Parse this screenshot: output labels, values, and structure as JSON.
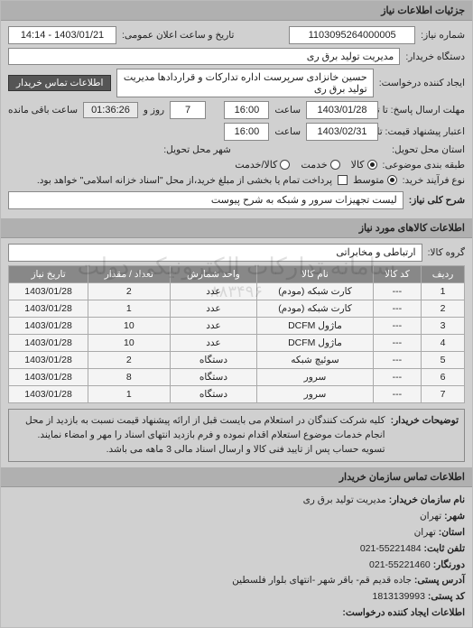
{
  "header": {
    "title": "جزئیات اطلاعات نیاز"
  },
  "top": {
    "req_no_label": "شماره نیاز:",
    "req_no": "1103095264000005",
    "pub_datetime_label": "تاریخ و ساعت اعلان عمومی:",
    "pub_datetime": "1403/01/21 - 14:14",
    "buyer_org_label": "دستگاه خریدار:",
    "buyer_org": "مدیریت تولید برق ری",
    "requester_label": "ایجاد کننده درخواست:",
    "requester": "حسین خانزادی سرپرست اداره تدارکات و قراردادها مدیریت تولید برق ری",
    "contact_btn": "اطلاعات تماس خریدار"
  },
  "deadlines": {
    "answer_to_label": "مهلت ارسال پاسخ: تا تاریخ:",
    "answer_date": "1403/01/28",
    "time_label": "ساعت",
    "answer_time": "16:00",
    "days_label": "روز و",
    "days": "7",
    "remain_label": "ساعت باقی مانده",
    "remain_time": "01:36:26",
    "price_to_label": "اعتبار پیشنهاد قیمت: تا تاریخ:",
    "price_date": "1403/02/31",
    "price_time": "16:00"
  },
  "location": {
    "province_label": "استان محل تحویل:",
    "city_label": "شهر محل تحویل:"
  },
  "classification": {
    "subject_label": "طبقه بندی موضوعی:",
    "opt_kala": "کالا",
    "opt_khadmat": "خدمت",
    "opt_kalakh": "کالا/خدمت",
    "process_label": "نوع فرآیند خرید:",
    "opt_mid": "متوسط",
    "process_note": "پرداخت تمام یا بخشی از مبلغ خرید،از محل \"اسناد خزانه اسلامی\" خواهد بود."
  },
  "need": {
    "title_label": "شرح کلی نیاز:",
    "title": "لیست تجهیزات سرور و شبکه به شرح پیوست"
  },
  "goods": {
    "section_title": "اطلاعات کالاهای مورد نیاز",
    "group_label": "گروه کالا:",
    "group": "ارتباطی و مخابراتی",
    "columns": {
      "row": "ردیف",
      "code": "کد کالا",
      "name": "نام کالا",
      "unit": "واحد شمارش",
      "qty": "تعداد / مقدار",
      "date": "تاریخ نیاز"
    },
    "rows": [
      {
        "n": "1",
        "code": "---",
        "name": "کارت شبکه (مودم)",
        "unit": "عدد",
        "qty": "2",
        "date": "1403/01/28"
      },
      {
        "n": "2",
        "code": "---",
        "name": "کارت شبکه (مودم)",
        "unit": "عدد",
        "qty": "1",
        "date": "1403/01/28"
      },
      {
        "n": "3",
        "code": "---",
        "name": "ماژول DCFM",
        "unit": "عدد",
        "qty": "10",
        "date": "1403/01/28"
      },
      {
        "n": "4",
        "code": "---",
        "name": "ماژول DCFM",
        "unit": "عدد",
        "qty": "10",
        "date": "1403/01/28"
      },
      {
        "n": "5",
        "code": "---",
        "name": "سوئیچ شبکه",
        "unit": "دستگاه",
        "qty": "2",
        "date": "1403/01/28"
      },
      {
        "n": "6",
        "code": "---",
        "name": "سرور",
        "unit": "دستگاه",
        "qty": "8",
        "date": "1403/01/28"
      },
      {
        "n": "7",
        "code": "---",
        "name": "سرور",
        "unit": "دستگاه",
        "qty": "1",
        "date": "1403/01/28"
      }
    ]
  },
  "buyer_notes": {
    "label": "توضیحات خریدار:",
    "text": "کلیه شرکت کنندگان در استعلام می بایست قبل از ارائه پیشنهاد قیمت نسبت به بازدید از محل انجام خدمات موضوع استعلام اقدام نموده و فرم بازدید انتهای اسناد را مهر و امضاء نمایند. تسویه حساب پس از تایید فنی کالا و ارسال اسناد مالی 3 ماهه می باشد."
  },
  "contact": {
    "section_title": "اطلاعات تماس سازمان خریدار",
    "org_label": "نام سازمان خریدار:",
    "org": "مدیریت تولید برق ری",
    "city_label": "شهر:",
    "city": "تهران",
    "province_label": "استان:",
    "province": "تهران",
    "phone_label": "تلفن ثابت:",
    "phone": "55221484-021",
    "fax_label": "دورنگار:",
    "fax": "55221460-021",
    "address_label": "آدرس پستی:",
    "address": "جاده قدیم قم- باقر شهر -انتهای بلوار فلسطین",
    "postal_label": "کد پستی:",
    "postal": "1813139993",
    "req_contact_label": "اطلاعات ایجاد کننده درخواست:"
  },
  "watermark": {
    "l1": "سامانه تدارکات الکترونیکی دولت",
    "l2": "۸۸۳۴۹۶"
  }
}
